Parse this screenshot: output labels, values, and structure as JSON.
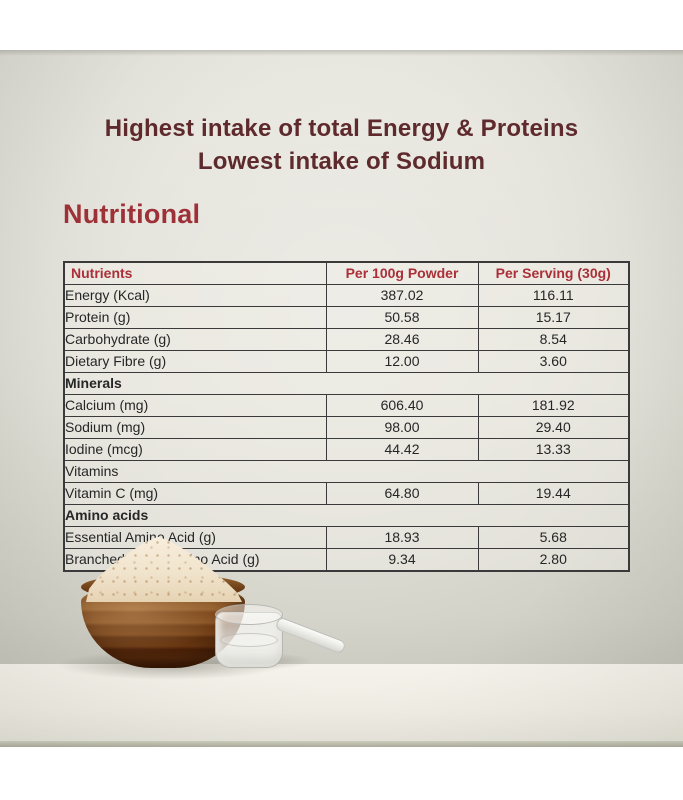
{
  "headline": {
    "line1": "Highest intake of total Energy & Proteins",
    "line2": "Lowest intake of Sodium"
  },
  "section_title": "Nutritional",
  "table": {
    "columns": [
      "Nutrients",
      "Per 100g Powder",
      "Per Serving (30g)"
    ],
    "rows": [
      {
        "type": "data",
        "nutrient": "Energy (Kcal)",
        "per_100g": "387.02",
        "per_serving": "116.11"
      },
      {
        "type": "data",
        "nutrient": "Protein (g)",
        "per_100g": "50.58",
        "per_serving": "15.17"
      },
      {
        "type": "data",
        "nutrient": "Carbohydrate (g)",
        "per_100g": "28.46",
        "per_serving": "8.54"
      },
      {
        "type": "data",
        "nutrient": "Dietary Fibre (g)",
        "per_100g": "12.00",
        "per_serving": "3.60"
      },
      {
        "type": "section",
        "nutrient": "Minerals",
        "emphasis": "red"
      },
      {
        "type": "data",
        "nutrient": "Calcium (mg)",
        "per_100g": "606.40",
        "per_serving": "181.92"
      },
      {
        "type": "data",
        "nutrient": "Sodium (mg)",
        "per_100g": "98.00",
        "per_serving": "29.40"
      },
      {
        "type": "data",
        "nutrient": "Iodine (mcg)",
        "per_100g": "44.42",
        "per_serving": "13.33"
      },
      {
        "type": "section",
        "nutrient": "Vitamins",
        "emphasis": "plain"
      },
      {
        "type": "data",
        "nutrient": "Vitamin C (mg)",
        "per_100g": "64.80",
        "per_serving": "19.44"
      },
      {
        "type": "section",
        "nutrient": "Amino acids",
        "emphasis": "red"
      },
      {
        "type": "data",
        "nutrient": "Essential Amino Acid (g)",
        "per_100g": "18.93",
        "per_serving": "5.68"
      },
      {
        "type": "data",
        "nutrient": "Branched Chain Amino Acid (g)",
        "per_100g": "9.34",
        "per_serving": "2.80"
      }
    ]
  },
  "colors": {
    "headline": "#5e2a2d",
    "section_title": "#9e3038",
    "table_accent": "#aa2f38",
    "table_text": "#262626",
    "table_border": "#3a3a3a",
    "photo_wall": "#e4e3db",
    "counter": "#efede4"
  }
}
